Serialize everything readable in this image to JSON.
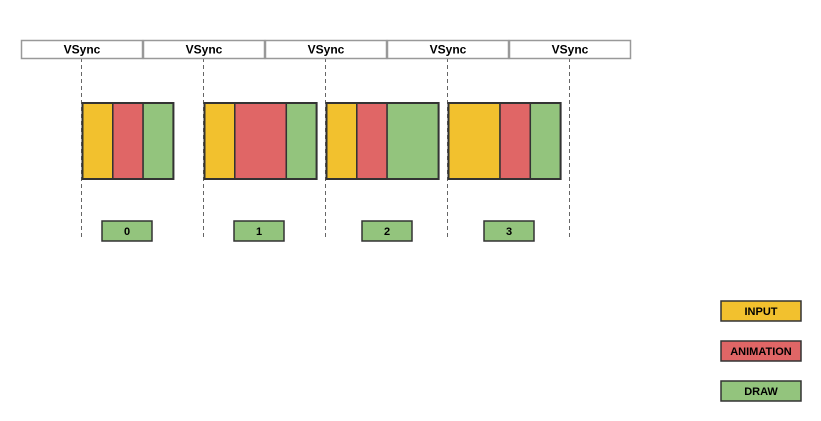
{
  "colors": {
    "input": "#f2c12e",
    "animation": "#e06666",
    "draw": "#93c47d",
    "border": "#333333",
    "vsync_border": "#999999",
    "divider": "#666666"
  },
  "vsync": {
    "labels": [
      "VSync",
      "VSync",
      "VSync",
      "VSync",
      "VSync"
    ]
  },
  "frames": [
    {
      "label": "0",
      "segments": [
        {
          "phase": "input",
          "units": 1
        },
        {
          "phase": "animation",
          "units": 1
        },
        {
          "phase": "draw",
          "units": 1
        }
      ]
    },
    {
      "label": "1",
      "segments": [
        {
          "phase": "input",
          "units": 1
        },
        {
          "phase": "animation",
          "units": 1.7
        },
        {
          "phase": "draw",
          "units": 1
        }
      ]
    },
    {
      "label": "2",
      "segments": [
        {
          "phase": "input",
          "units": 1
        },
        {
          "phase": "animation",
          "units": 1
        },
        {
          "phase": "draw",
          "units": 1.7
        }
      ]
    },
    {
      "label": "3",
      "segments": [
        {
          "phase": "input",
          "units": 1.7
        },
        {
          "phase": "animation",
          "units": 1
        },
        {
          "phase": "draw",
          "units": 1
        }
      ]
    }
  ],
  "legend": {
    "items": [
      {
        "label": "INPUT",
        "phase": "input"
      },
      {
        "label": "ANIMATION",
        "phase": "animation"
      },
      {
        "label": "DRAW",
        "phase": "draw"
      }
    ]
  }
}
